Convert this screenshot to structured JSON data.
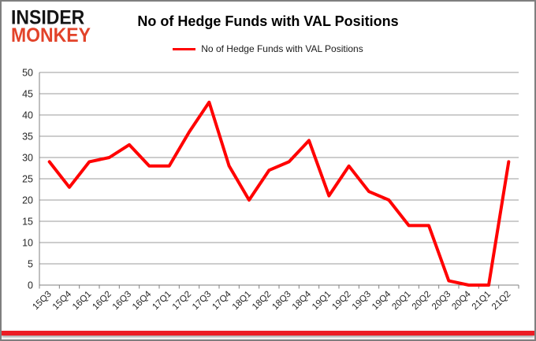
{
  "branding": {
    "logo_line1": "INSIDER",
    "logo_line2": "MONKEY"
  },
  "header": {
    "title": "No of Hedge Funds with VAL Positions"
  },
  "legend": {
    "label": "No of Hedge Funds with VAL Positions"
  },
  "colors": {
    "series_line": "#ff0000",
    "brand_black": "#141414",
    "brand_red": "#e2432a",
    "grid": "#9b9b9b",
    "axis": "#808080",
    "frame_border": "#7f7f7f",
    "bottom_bar": "#ec1c24",
    "tick_label": "#262626"
  },
  "chart_data": {
    "type": "line",
    "title": "No of Hedge Funds with VAL Positions",
    "categories": [
      "15Q3",
      "15Q4",
      "16Q1",
      "16Q2",
      "16Q3",
      "16Q4",
      "17Q1",
      "17Q2",
      "17Q3",
      "17Q4",
      "18Q1",
      "18Q2",
      "18Q3",
      "18Q4",
      "19Q1",
      "19Q2",
      "19Q3",
      "19Q4",
      "20Q1",
      "20Q2",
      "20Q3",
      "20Q4",
      "21Q1",
      "21Q2"
    ],
    "series": [
      {
        "name": "No of Hedge Funds with VAL Positions",
        "color": "#ff0000",
        "values": [
          29,
          23,
          29,
          30,
          33,
          28,
          28,
          36,
          43,
          28,
          20,
          27,
          29,
          34,
          21,
          28,
          22,
          20,
          14,
          14,
          1,
          0,
          0,
          29
        ]
      }
    ],
    "xlabel": "",
    "ylabel": "",
    "ylim": [
      0,
      50
    ],
    "ytick_step": 5,
    "y_tick_labels": [
      "0",
      "5",
      "10",
      "15",
      "20",
      "25",
      "30",
      "35",
      "40",
      "45",
      "50"
    ],
    "grid": true,
    "legend_position": "top-center"
  }
}
